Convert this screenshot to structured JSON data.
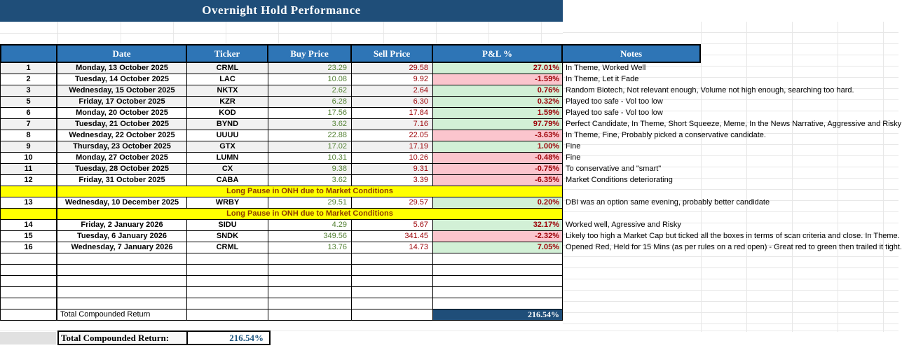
{
  "title": "Overnight Hold Performance",
  "columns": {
    "num": "",
    "date": "Date",
    "ticker": "Ticker",
    "buy": "Buy Price",
    "sell": "Sell Price",
    "pnl": "P&L %",
    "notes": "Notes"
  },
  "pause_label": "Long Pause in ONH due to Market Conditions",
  "rows": [
    {
      "type": "data",
      "num": "1",
      "date": "Monday, 13 October 2025",
      "ticker": "CRML",
      "buy": "23.29",
      "sell": "29.58",
      "pnl": "27.01%",
      "note": "In Theme, Worked Well"
    },
    {
      "type": "data",
      "num": "2",
      "date": "Tuesday, 14 October 2025",
      "ticker": "LAC",
      "buy": "10.08",
      "sell": "9.92",
      "pnl": "-1.59%",
      "note": "In Theme, Let it Fade"
    },
    {
      "type": "data",
      "num": "3",
      "date": "Wednesday, 15 October 2025",
      "ticker": "NKTX",
      "buy": "2.62",
      "sell": "2.64",
      "pnl": "0.76%",
      "note": "Random Biotech, Not relevant enough, Volume not high enough, searching too hard."
    },
    {
      "type": "data",
      "num": "5",
      "date": "Friday, 17 October 2025",
      "ticker": "KZR",
      "buy": "6.28",
      "sell": "6.30",
      "pnl": "0.32%",
      "note": "Played too safe - Vol too low"
    },
    {
      "type": "data",
      "num": "6",
      "date": "Monday, 20 October 2025",
      "ticker": "KOD",
      "buy": "17.56",
      "sell": "17.84",
      "pnl": "1.59%",
      "note": "Played too safe - Vol too low"
    },
    {
      "type": "data",
      "num": "7",
      "date": "Tuesday, 21 October 2025",
      "ticker": "BYND",
      "buy": "3.62",
      "sell": "7.16",
      "pnl": "97.79%",
      "note": "Perfect Candidate, In Theme, Short Squeeze, Meme, In the News Narrative, Aggressive and Risky"
    },
    {
      "type": "data",
      "num": "8",
      "date": "Wednesday, 22 October 2025",
      "ticker": "UUUU",
      "buy": "22.88",
      "sell": "22.05",
      "pnl": "-3.63%",
      "note": "In Theme, Fine, Probably picked a conservative candidate."
    },
    {
      "type": "data",
      "num": "9",
      "date": "Thursday, 23 October 2025",
      "ticker": "GTX",
      "buy": "17.02",
      "sell": "17.19",
      "pnl": "1.00%",
      "note": "Fine"
    },
    {
      "type": "data",
      "num": "10",
      "date": "Monday, 27 October 2025",
      "ticker": "LUMN",
      "buy": "10.31",
      "sell": "10.26",
      "pnl": "-0.48%",
      "note": "Fine"
    },
    {
      "type": "data",
      "num": "11",
      "date": "Tuesday, 28 October 2025",
      "ticker": "CX",
      "buy": "9.38",
      "sell": "9.31",
      "pnl": "-0.75%",
      "note": "To conservative and \"smart\""
    },
    {
      "type": "data",
      "num": "12",
      "date": "Friday, 31 October 2025",
      "ticker": "CABA",
      "buy": "3.62",
      "sell": "3.39",
      "pnl": "-6.35%",
      "note": "Market Conditions deteriorating"
    },
    {
      "type": "pause"
    },
    {
      "type": "data",
      "num": "13",
      "date": "Wednesday, 10 December 2025",
      "ticker": "WRBY",
      "buy": "29.51",
      "sell": "29.57",
      "pnl": "0.20%",
      "note": "DBI was an option same evening, probably better candidate"
    },
    {
      "type": "pause"
    },
    {
      "type": "data",
      "num": "14",
      "date": "Friday, 2 January 2026",
      "ticker": "SIDU",
      "buy": "4.29",
      "sell": "5.67",
      "pnl": "32.17%",
      "note": "Worked well, Agressive and Risky"
    },
    {
      "type": "data",
      "num": "15",
      "date": "Tuesday, 6 January 2026",
      "ticker": "SNDK",
      "buy": "349.56",
      "sell": "341.45",
      "pnl": "-2.32%",
      "note": "Likely too high a Market Cap but ticked all the boxes in terms of scan criteria and close. In Theme."
    },
    {
      "type": "data",
      "num": "16",
      "date": "Wednesday, 7 January 2026",
      "ticker": "CRML",
      "buy": "13.76",
      "sell": "14.73",
      "pnl": "7.05%",
      "note": "Opened Red, Held for 15 Mins (as per rules on a red open) - Great red to green then trailed it tight."
    },
    {
      "type": "empty"
    },
    {
      "type": "empty"
    },
    {
      "type": "empty"
    },
    {
      "type": "empty"
    },
    {
      "type": "empty"
    },
    {
      "type": "total"
    }
  ],
  "total_row": {
    "label": "Total Compounded Return",
    "value": "216.54%"
  },
  "summary": {
    "label": "Total Compounded Return:",
    "value": "216.54%"
  },
  "colors": {
    "title_navy": "#1F4E79",
    "header_blue": "#2E75B6",
    "positive_bg": "#D2F0D6",
    "negative_bg": "#FBC5CD",
    "buy_text": "#548235",
    "sell_text": "#9C0006",
    "pnl_text": "#9C0006",
    "pause_bg": "#FFFF00",
    "pause_text": "#8E3B00",
    "total_navy": "#1F4E79",
    "summary_value_blue": "#205781"
  }
}
